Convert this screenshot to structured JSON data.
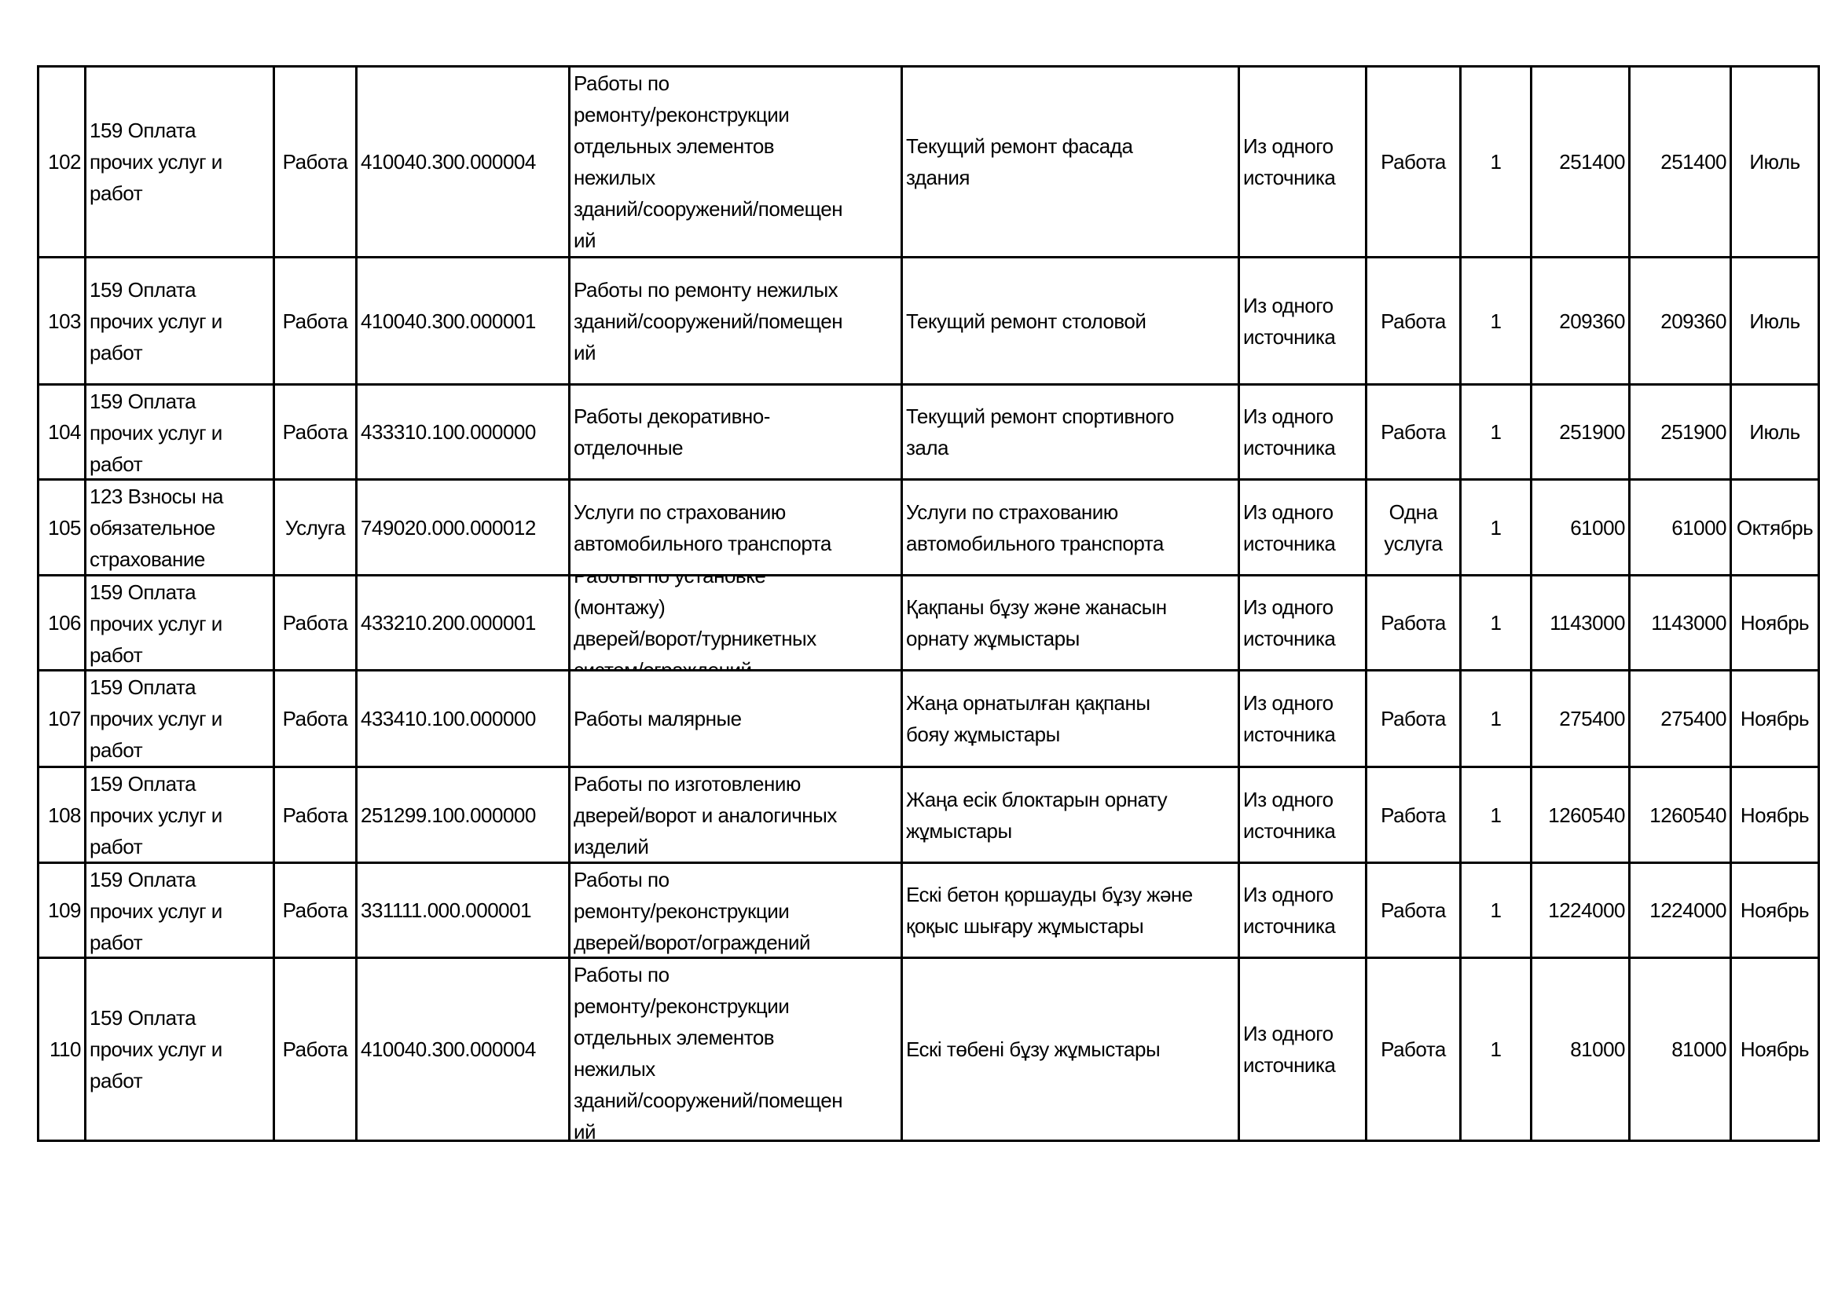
{
  "rows": [
    {
      "no": "102",
      "article": "159 Оплата\nпрочих услуг и\nработ",
      "type": "Работа",
      "code": "410040.300.000004",
      "name": "Работы по\nремонту/реконструкции\nотдельных элементов\nнежилых\nзданий/сооружений/помещен\nий",
      "description": "Текущий ремонт фасада\nздания",
      "method": "Из одного\nисточника",
      "unit": "Работа",
      "qty": "1",
      "price": "251400",
      "sum": "251400",
      "month": "Июль"
    },
    {
      "no": "103",
      "article": "159 Оплата\nпрочих услуг и\nработ",
      "type": "Работа",
      "code": "410040.300.000001",
      "name": "Работы по ремонту нежилых\nзданий/сооружений/помещен\nий",
      "description": "Текущий ремонт столовой",
      "method": "Из одного\nисточника",
      "unit": "Работа",
      "qty": "1",
      "price": "209360",
      "sum": "209360",
      "month": "Июль"
    },
    {
      "no": "104",
      "article": "159 Оплата\nпрочих услуг и\nработ",
      "type": "Работа",
      "code": "433310.100.000000",
      "name": "Работы декоративно-\nотделочные",
      "description": "Текущий ремонт спортивного\nзала",
      "method": "Из одного\nисточника",
      "unit": "Работа",
      "qty": "1",
      "price": "251900",
      "sum": "251900",
      "month": "Июль"
    },
    {
      "no": "105",
      "article": "123 Взносы на\nобязательное\nстрахование",
      "type": "Услуга",
      "code": "749020.000.000012",
      "name": "Услуги по страхованию\nавтомобильного транспорта",
      "description": "Услуги по страхованию\nавтомобильного транспорта",
      "method": "Из одного\nисточника",
      "unit": "Одна\nуслуга",
      "qty": "1",
      "price": "61000",
      "sum": "61000",
      "month": "Октябрь"
    },
    {
      "no": "106",
      "article": "159 Оплата\nпрочих услуг и\nработ",
      "type": "Работа",
      "code": "433210.200.000001",
      "name": "Работы по установке\n(монтажу)\nдверей/ворот/турникетных\nсистем/ограждений",
      "description": "Қақпаны бұзу және жанасын\nорнату жұмыстары",
      "method": "Из одного\nисточника",
      "unit": "Работа",
      "qty": "1",
      "price": "1143000",
      "sum": "1143000",
      "month": "Ноябрь"
    },
    {
      "no": "107",
      "article": "159 Оплата\nпрочих услуг и\nработ",
      "type": "Работа",
      "code": "433410.100.000000",
      "name": "Работы малярные",
      "description": "Жаңа орнатылған қақпаны\nбояу жұмыстары",
      "method": "Из одного\nисточника",
      "unit": "Работа",
      "qty": "1",
      "price": "275400",
      "sum": "275400",
      "month": "Ноябрь"
    },
    {
      "no": "108",
      "article": "159 Оплата\nпрочих услуг и\nработ",
      "type": "Работа",
      "code": "251299.100.000000",
      "name": "Работы по изготовлению\nдверей/ворот и аналогичных\nизделий",
      "description": "Жаңа есік блоктарын орнату\nжұмыстары",
      "method": "Из одного\nисточника",
      "unit": "Работа",
      "qty": "1",
      "price": "1260540",
      "sum": "1260540",
      "month": "Ноябрь"
    },
    {
      "no": "109",
      "article": "159 Оплата\nпрочих услуг и\nработ",
      "type": "Работа",
      "code": "331111.000.000001",
      "name": "Работы по\nремонту/реконструкции\nдверей/ворот/ограждений",
      "description": "Ескі бетон қоршауды бұзу және\nқоқыс шығару жұмыстары",
      "method": "Из одного\nисточника",
      "unit": "Работа",
      "qty": "1",
      "price": "1224000",
      "sum": "1224000",
      "month": "Ноябрь"
    },
    {
      "no": "110",
      "article": "159 Оплата\nпрочих услуг и\nработ",
      "type": "Работа",
      "code": "410040.300.000004",
      "name": "Работы по\nремонту/реконструкции\nотдельных элементов\nнежилых\nзданий/сооружений/помещен\nий",
      "description": "Ескі төбені бұзу жұмыстары",
      "method": "Из одного\nисточника",
      "unit": "Работа",
      "qty": "1",
      "price": "81000",
      "sum": "81000",
      "month": "Ноябрь"
    }
  ]
}
